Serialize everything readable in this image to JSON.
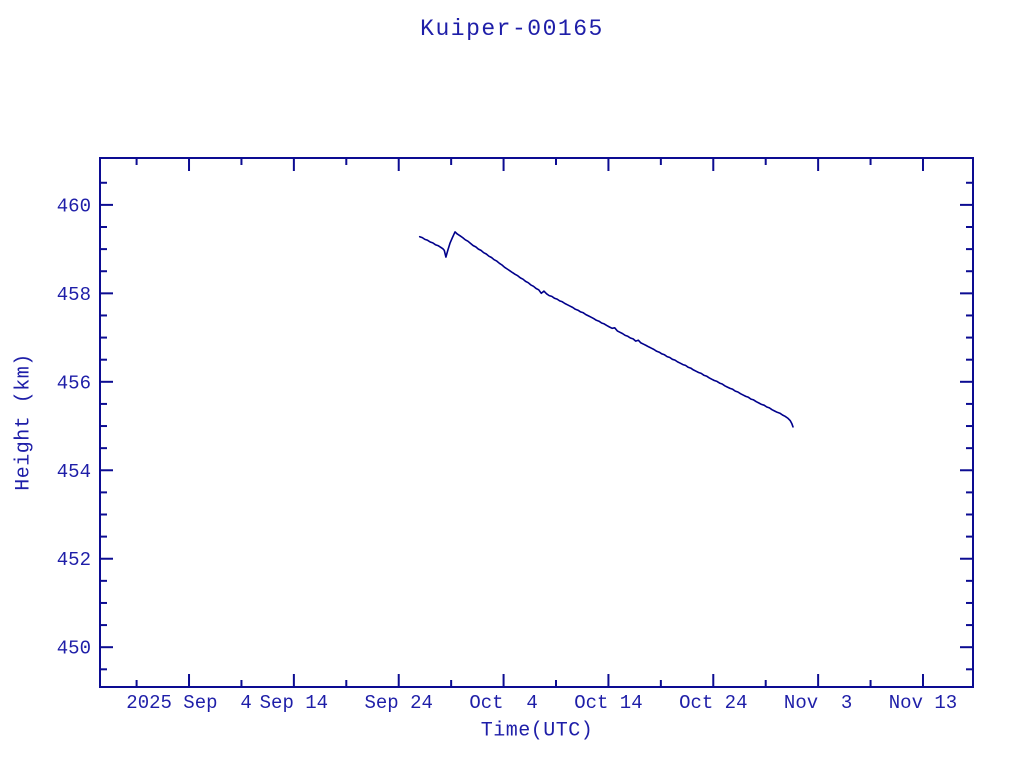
{
  "window": {
    "background": "#ffffff"
  },
  "chart_data": {
    "type": "line",
    "title": "Kuiper-00165",
    "xlabel": "Time(UTC)",
    "ylabel": "Height (km)",
    "grid": false,
    "legend_position": "none",
    "colors": {
      "background": "#ffffff",
      "line": "#00008b",
      "axis": "#0c0c92",
      "text": "#1e1ea8"
    },
    "x_axis": {
      "unit_note": "days relative to the 2025 Sep 4 tick",
      "lim": [
        -8.49,
        74.77
      ],
      "major_ticks": [
        {
          "value": 0,
          "label": "2025 Sep  4"
        },
        {
          "value": 10,
          "label": "Sep 14"
        },
        {
          "value": 20,
          "label": "Sep 24"
        },
        {
          "value": 30,
          "label": "Oct  4"
        },
        {
          "value": 40,
          "label": "Oct 14"
        },
        {
          "value": 50,
          "label": "Oct 24"
        },
        {
          "value": 60,
          "label": "Nov  3"
        },
        {
          "value": 70,
          "label": "Nov 13"
        }
      ],
      "minor_ticks": [
        -5,
        5,
        15,
        25,
        35,
        45,
        55,
        65
      ]
    },
    "y_axis": {
      "lim": [
        449.1,
        461.06
      ],
      "major_ticks": [
        {
          "value": 450,
          "label": "450"
        },
        {
          "value": 452,
          "label": "452"
        },
        {
          "value": 454,
          "label": "454"
        },
        {
          "value": 456,
          "label": "456"
        },
        {
          "value": 458,
          "label": "458"
        },
        {
          "value": 460,
          "label": "460"
        }
      ],
      "minor_ticks": [
        449.5,
        450.5,
        451,
        451.5,
        452.5,
        453,
        453.5,
        454.5,
        455,
        455.5,
        456.5,
        457,
        457.5,
        458.5,
        459,
        459.5,
        460.5
      ]
    },
    "series": [
      {
        "name": "height-km",
        "color": "#00008b",
        "points": [
          [
            22.0,
            459.28
          ],
          [
            22.25,
            459.26
          ],
          [
            22.5,
            459.22
          ],
          [
            22.75,
            459.2
          ],
          [
            23.0,
            459.16
          ],
          [
            23.25,
            459.14
          ],
          [
            23.5,
            459.1
          ],
          [
            23.75,
            459.08
          ],
          [
            24.0,
            459.04
          ],
          [
            24.2,
            459.01
          ],
          [
            24.35,
            458.97
          ],
          [
            24.5,
            458.82
          ],
          [
            24.7,
            458.99
          ],
          [
            24.9,
            459.14
          ],
          [
            25.1,
            459.25
          ],
          [
            25.37,
            459.39
          ],
          [
            25.6,
            459.34
          ],
          [
            25.85,
            459.3
          ],
          [
            26.1,
            459.26
          ],
          [
            26.35,
            459.21
          ],
          [
            26.6,
            459.18
          ],
          [
            26.85,
            459.13
          ],
          [
            27.1,
            459.08
          ],
          [
            27.35,
            459.05
          ],
          [
            27.6,
            459.0
          ],
          [
            27.85,
            458.97
          ],
          [
            28.1,
            458.92
          ],
          [
            28.35,
            458.89
          ],
          [
            28.6,
            458.84
          ],
          [
            28.85,
            458.81
          ],
          [
            29.1,
            458.76
          ],
          [
            29.35,
            458.73
          ],
          [
            29.6,
            458.68
          ],
          [
            29.85,
            458.64
          ],
          [
            30.1,
            458.59
          ],
          [
            30.35,
            458.55
          ],
          [
            30.6,
            458.51
          ],
          [
            30.85,
            458.47
          ],
          [
            31.1,
            458.43
          ],
          [
            31.35,
            458.4
          ],
          [
            31.6,
            458.35
          ],
          [
            31.85,
            458.32
          ],
          [
            32.1,
            458.27
          ],
          [
            32.35,
            458.24
          ],
          [
            32.6,
            458.19
          ],
          [
            32.85,
            458.16
          ],
          [
            33.1,
            458.11
          ],
          [
            33.35,
            458.08
          ],
          [
            33.6,
            458.0
          ],
          [
            33.85,
            458.05
          ],
          [
            34.1,
            457.99
          ],
          [
            34.35,
            457.95
          ],
          [
            34.6,
            457.93
          ],
          [
            34.85,
            457.89
          ],
          [
            35.1,
            457.87
          ],
          [
            35.35,
            457.83
          ],
          [
            35.6,
            457.81
          ],
          [
            35.85,
            457.77
          ],
          [
            36.1,
            457.74
          ],
          [
            36.35,
            457.71
          ],
          [
            36.6,
            457.68
          ],
          [
            36.85,
            457.64
          ],
          [
            37.1,
            457.62
          ],
          [
            37.35,
            457.58
          ],
          [
            37.6,
            457.56
          ],
          [
            37.85,
            457.52
          ],
          [
            38.1,
            457.49
          ],
          [
            38.35,
            457.46
          ],
          [
            38.6,
            457.43
          ],
          [
            38.85,
            457.39
          ],
          [
            39.1,
            457.37
          ],
          [
            39.35,
            457.33
          ],
          [
            39.6,
            457.31
          ],
          [
            39.85,
            457.27
          ],
          [
            40.1,
            457.24
          ],
          [
            40.35,
            457.21
          ],
          [
            40.6,
            457.22
          ],
          [
            40.85,
            457.15
          ],
          [
            41.1,
            457.12
          ],
          [
            41.35,
            457.09
          ],
          [
            41.6,
            457.05
          ],
          [
            41.85,
            457.03
          ],
          [
            42.1,
            456.99
          ],
          [
            42.35,
            456.97
          ],
          [
            42.6,
            456.92
          ],
          [
            42.85,
            456.94
          ],
          [
            43.1,
            456.88
          ],
          [
            43.35,
            456.85
          ],
          [
            43.6,
            456.82
          ],
          [
            43.85,
            456.79
          ],
          [
            44.1,
            456.76
          ],
          [
            44.35,
            456.73
          ],
          [
            44.6,
            456.69
          ],
          [
            44.85,
            456.67
          ],
          [
            45.1,
            456.63
          ],
          [
            45.35,
            456.61
          ],
          [
            45.6,
            456.57
          ],
          [
            45.85,
            456.55
          ],
          [
            46.1,
            456.51
          ],
          [
            46.35,
            456.49
          ],
          [
            46.6,
            456.45
          ],
          [
            46.85,
            456.42
          ],
          [
            47.1,
            456.39
          ],
          [
            47.35,
            456.37
          ],
          [
            47.6,
            456.33
          ],
          [
            47.85,
            456.31
          ],
          [
            48.1,
            456.27
          ],
          [
            48.35,
            456.24
          ],
          [
            48.6,
            456.21
          ],
          [
            48.85,
            456.19
          ],
          [
            49.1,
            456.15
          ],
          [
            49.35,
            456.13
          ],
          [
            49.6,
            456.09
          ],
          [
            49.85,
            456.06
          ],
          [
            50.1,
            456.03
          ],
          [
            50.35,
            456.01
          ],
          [
            50.6,
            455.97
          ],
          [
            50.85,
            455.95
          ],
          [
            51.1,
            455.91
          ],
          [
            51.35,
            455.88
          ],
          [
            51.6,
            455.85
          ],
          [
            51.85,
            455.83
          ],
          [
            52.1,
            455.79
          ],
          [
            52.35,
            455.77
          ],
          [
            52.6,
            455.73
          ],
          [
            52.85,
            455.7
          ],
          [
            53.1,
            455.67
          ],
          [
            53.35,
            455.65
          ],
          [
            53.6,
            455.61
          ],
          [
            53.85,
            455.59
          ],
          [
            54.1,
            455.55
          ],
          [
            54.35,
            455.52
          ],
          [
            54.6,
            455.49
          ],
          [
            54.85,
            455.47
          ],
          [
            55.1,
            455.43
          ],
          [
            55.35,
            455.41
          ],
          [
            55.6,
            455.37
          ],
          [
            55.85,
            455.34
          ],
          [
            56.1,
            455.31
          ],
          [
            56.35,
            455.29
          ],
          [
            56.6,
            455.25
          ],
          [
            56.85,
            455.22
          ],
          [
            57.1,
            455.18
          ],
          [
            57.35,
            455.12
          ],
          [
            57.5,
            455.05
          ],
          [
            57.6,
            454.98
          ]
        ]
      }
    ]
  }
}
